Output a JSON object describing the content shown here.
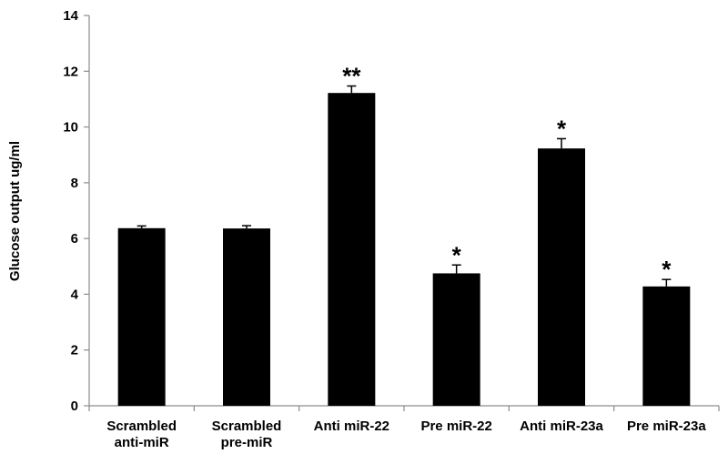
{
  "chart_data": {
    "type": "bar",
    "title": "",
    "xlabel": "",
    "ylabel": "Glucose output ug/ml",
    "ylim": [
      0,
      14
    ],
    "yticks": [
      0,
      2,
      4,
      6,
      8,
      10,
      12,
      14
    ],
    "grid": false,
    "legend": "none",
    "bar_color": "#000000",
    "categories": [
      [
        "Scrambled",
        "anti-miR"
      ],
      [
        "Scrambled",
        "pre-miR"
      ],
      [
        "Anti miR-22"
      ],
      [
        "Pre miR-22"
      ],
      [
        "Anti miR-23a"
      ],
      [
        "Pre miR-23a"
      ]
    ],
    "values": [
      6.37,
      6.36,
      11.22,
      4.75,
      9.23,
      4.28
    ],
    "errors": [
      0.08,
      0.1,
      0.25,
      0.3,
      0.35,
      0.25
    ],
    "significance": [
      "",
      "",
      "**",
      "*",
      "*",
      "*"
    ]
  }
}
